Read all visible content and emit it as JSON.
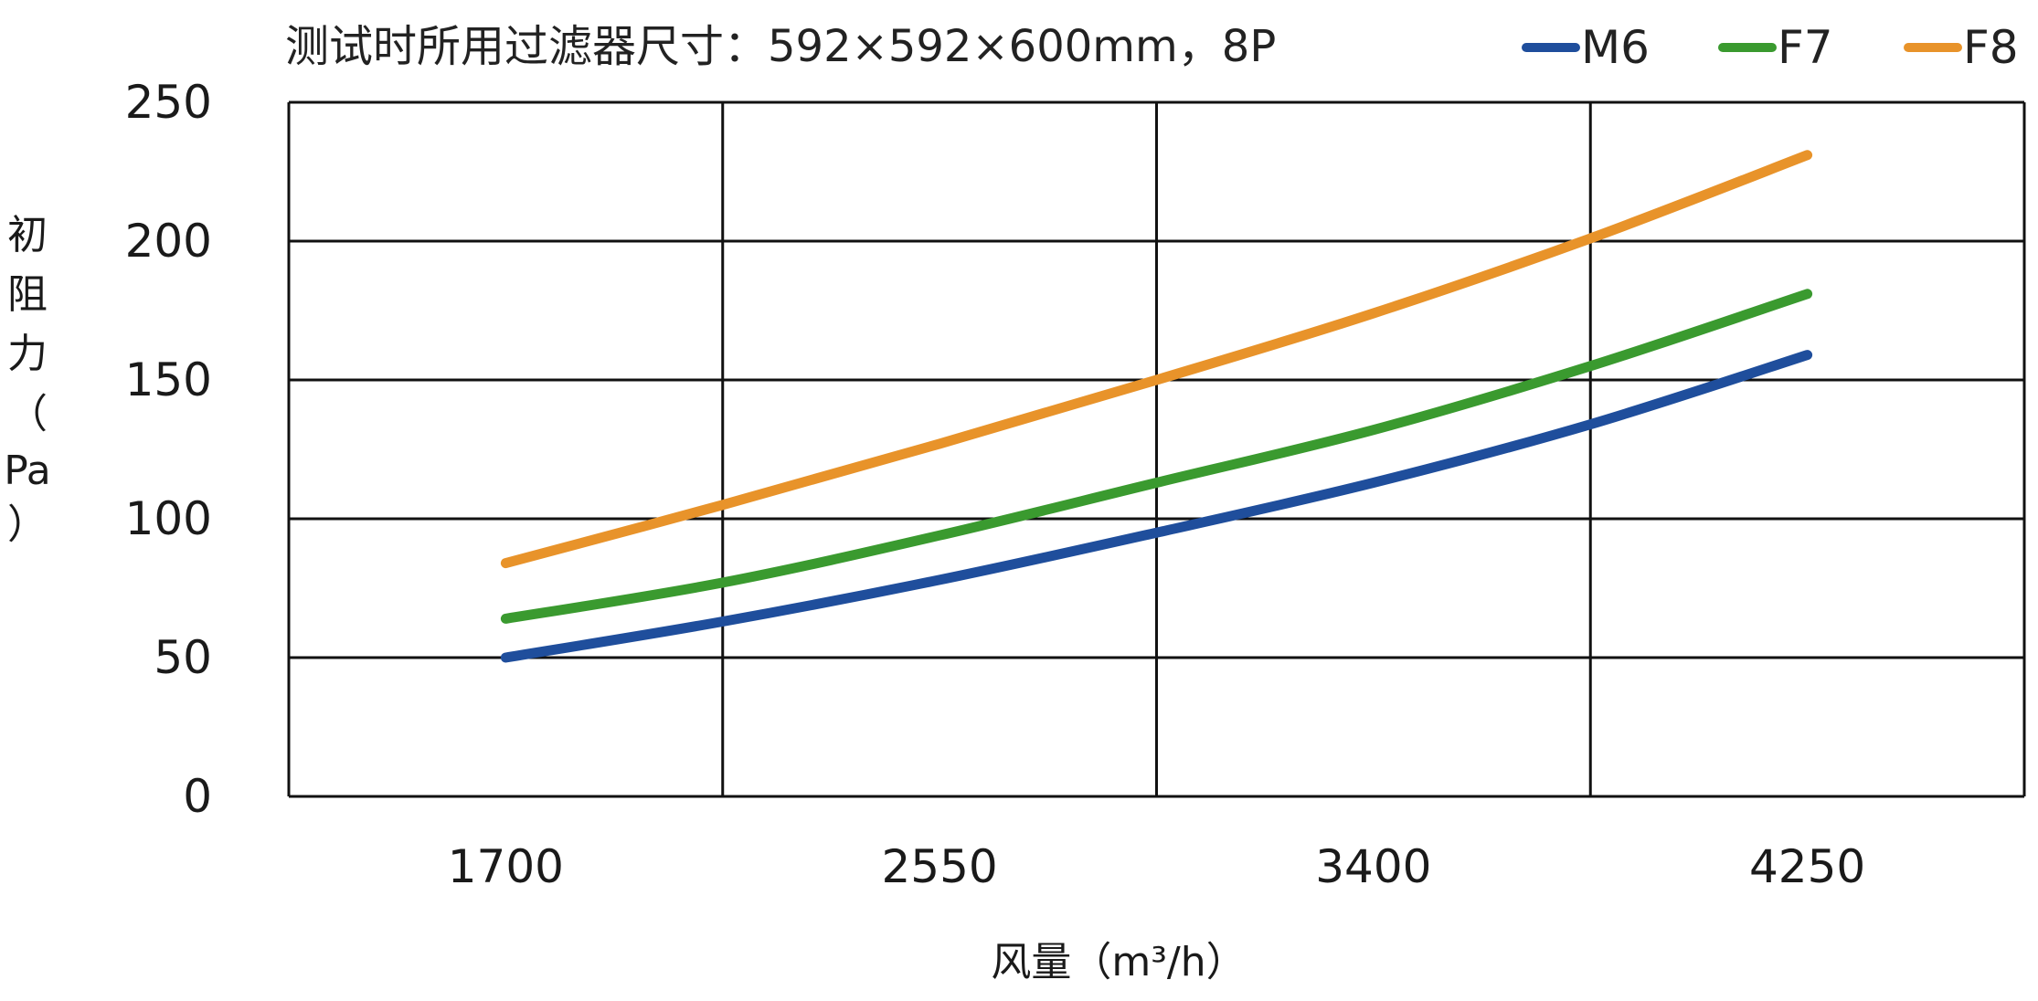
{
  "chart_data": {
    "type": "line",
    "title": "测试时所用过滤器尺寸：592×592×600mm，8P",
    "xlabel": "风量（m³/h）",
    "ylabel_chars": [
      "初",
      "阻",
      "力",
      "（",
      "Pa",
      "）"
    ],
    "ylabel": "初阻力（Pa）",
    "categories": [
      "1700",
      "2550",
      "3400",
      "4250"
    ],
    "x_range": [
      1275,
      4675
    ],
    "x_grid": [
      2125,
      2975,
      3825
    ],
    "ylim": [
      0,
      250
    ],
    "y_ticks": [
      0,
      50,
      100,
      150,
      200,
      250
    ],
    "y_tick_labels": [
      "0",
      "50",
      "100",
      "150",
      "200",
      "250"
    ],
    "grid": true,
    "legend_position": "top-right",
    "series": [
      {
        "name": "M6",
        "color": "#1f4e9c",
        "x": [
          1700,
          2125,
          2550,
          2975,
          3400,
          3825,
          4250
        ],
        "values": [
          50,
          63,
          78,
          95,
          113,
          134,
          159
        ]
      },
      {
        "name": "F7",
        "color": "#3a9a2f",
        "x": [
          1700,
          2125,
          2550,
          2975,
          3400,
          3825,
          4250
        ],
        "values": [
          64,
          77,
          94,
          113,
          132,
          155,
          181
        ]
      },
      {
        "name": "F8",
        "color": "#e8932a",
        "x": [
          1700,
          2125,
          2550,
          2975,
          3400,
          3825,
          4250
        ],
        "values": [
          84,
          105,
          127,
          150,
          174,
          201,
          231
        ]
      }
    ]
  }
}
